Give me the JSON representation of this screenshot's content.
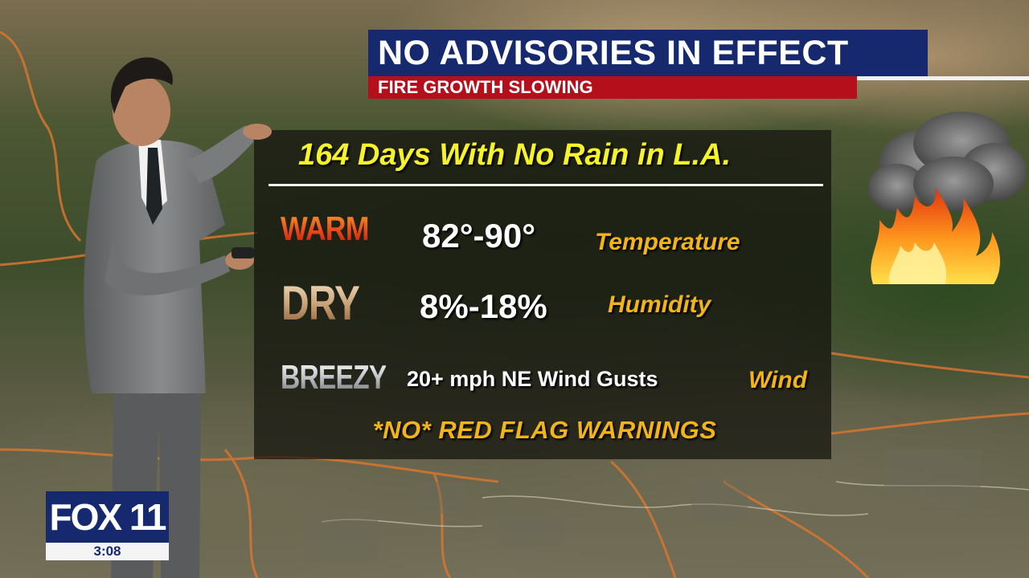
{
  "banner": {
    "title": "NO ADVISORIES IN EFFECT",
    "subtitle": "FIRE GROWTH SLOWING"
  },
  "panel": {
    "headline": "164 Days With No Rain in L.A.",
    "rows": [
      {
        "label": "WARM",
        "value": "82°-90°",
        "category": "Temperature"
      },
      {
        "label": "DRY",
        "value": "8%-18%",
        "category": "Humidity"
      },
      {
        "label": "BREEZY",
        "value": "20+ mph NE Wind Gusts",
        "category": "Wind"
      }
    ],
    "warning": "*NO* RED FLAG WARNINGS"
  },
  "icons": {
    "weather": "fire-smoke-icon"
  },
  "logo": {
    "name": "FOX 11",
    "time": "3:08"
  },
  "colors": {
    "banner_blue": "#17296e",
    "banner_red": "#b50f1c",
    "headline_yellow": "#f6f32a",
    "category_gold": "#f2b418"
  }
}
